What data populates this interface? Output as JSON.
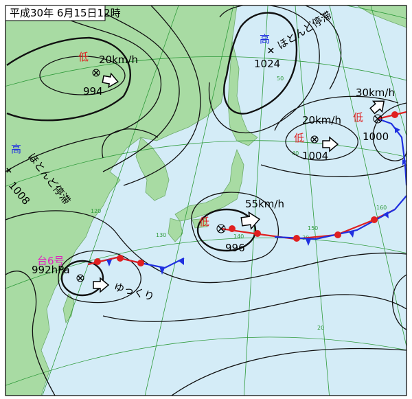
{
  "header": {
    "title": "平成30年 6月15日12時"
  },
  "lows": [
    {
      "symbol": "低",
      "speed": "20km/h",
      "pressure": "994"
    },
    {
      "symbol": "低",
      "speed": "20km/h",
      "pressure": "1004"
    },
    {
      "symbol": "低",
      "speed": "30km/h",
      "pressure": "1000"
    },
    {
      "symbol": "低",
      "speed": "55km/h",
      "pressure": "996"
    }
  ],
  "highs": [
    {
      "symbol": "高",
      "motion": "ほとんど停滞",
      "pressure": "1024"
    },
    {
      "symbol": "高",
      "motion": "ほとんど停滞",
      "pressure": "1008"
    }
  ],
  "typhoon": {
    "name": "台6号",
    "pressure": "992hPa",
    "motion": "ゆっくり"
  },
  "grid_labels": [
    "50",
    "40",
    "30",
    "20",
    "120",
    "130",
    "140",
    "150",
    "160"
  ]
}
